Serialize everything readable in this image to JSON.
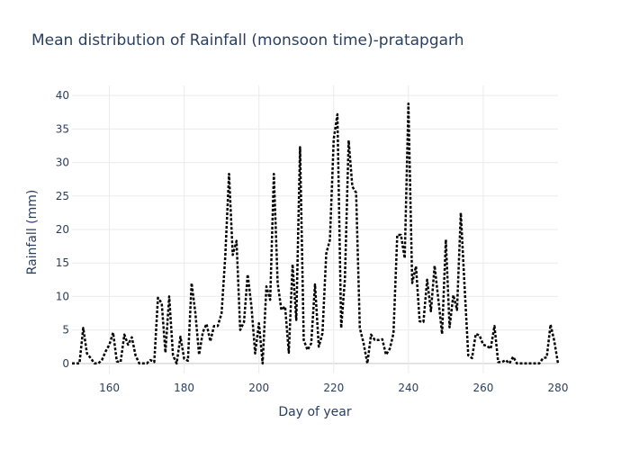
{
  "chart_data": {
    "type": "line",
    "title": "Mean distribution of Rainfall (monsoon time)-pratapgarh",
    "xlabel": "Day of year",
    "ylabel": "Rainfall (mm)",
    "xlim": [
      150,
      280
    ],
    "ylim": [
      -1.5,
      41.5
    ],
    "xticks": [
      160,
      180,
      200,
      220,
      240,
      260,
      280
    ],
    "yticks": [
      0,
      5,
      10,
      15,
      20,
      25,
      30,
      35,
      40
    ],
    "grid": true,
    "legend": "none",
    "line_color": "#000000",
    "line_style": "dotted",
    "series": [
      {
        "x": [
          150,
          151,
          152,
          153,
          154,
          155,
          156,
          157,
          158,
          159,
          160,
          161,
          162,
          163,
          164,
          165,
          166,
          167,
          168,
          169,
          170,
          171,
          172,
          173,
          174,
          175,
          176,
          177,
          178,
          179,
          180,
          181,
          182,
          183,
          184,
          185,
          186,
          187,
          188,
          189,
          190,
          191,
          192,
          193,
          194,
          195,
          196,
          197,
          198,
          199,
          200,
          201,
          202,
          203,
          204,
          205,
          206,
          207,
          208,
          209,
          210,
          211,
          212,
          213,
          214,
          215,
          216,
          217,
          218,
          219,
          220,
          221,
          222,
          223,
          224,
          225,
          226,
          227,
          228,
          229,
          230,
          231,
          232,
          233,
          234,
          235,
          236,
          237,
          238,
          239,
          240,
          241,
          242,
          243,
          244,
          245,
          246,
          247,
          248,
          249,
          250,
          251,
          252,
          253,
          254,
          255,
          256,
          257,
          258,
          259,
          260,
          261,
          262,
          263,
          264,
          265,
          266,
          267,
          268,
          269,
          270,
          271,
          272,
          273,
          274,
          275,
          276,
          277,
          278,
          279,
          280
        ],
        "values": [
          0,
          0,
          0,
          5.3,
          1.5,
          0.8,
          0,
          0,
          0.5,
          1.8,
          2.8,
          4.6,
          0.3,
          0.2,
          4.3,
          2.8,
          3.9,
          1.2,
          0,
          0,
          0,
          0.5,
          0.2,
          9.8,
          9,
          1.6,
          10,
          1.2,
          0,
          4,
          0.7,
          0.4,
          12,
          7.5,
          1.3,
          4.7,
          5.9,
          3.3,
          5.6,
          5.6,
          7.5,
          16,
          28.3,
          16.2,
          18.3,
          5,
          6.2,
          13.3,
          8.5,
          1.5,
          6,
          0,
          11.5,
          9.5,
          28.3,
          12,
          8,
          8.5,
          1.6,
          14.8,
          6.5,
          32.3,
          3.5,
          2,
          3,
          11.8,
          2.5,
          4.5,
          16.4,
          18.5,
          33.5,
          37.2,
          5.3,
          12.5,
          33.3,
          26.4,
          25.5,
          5.3,
          3,
          0,
          4.3,
          3.5,
          3.5,
          3.6,
          1.3,
          2.2,
          4.5,
          19.2,
          19.2,
          15.7,
          38.8,
          12,
          14.5,
          6.3,
          6.2,
          12.5,
          7.8,
          14.6,
          9.5,
          4.4,
          18.5,
          5.4,
          10.2,
          8,
          22.5,
          11.5,
          1.2,
          0.8,
          4.4,
          4.2,
          2.8,
          2.6,
          2.2,
          5.6,
          0.2,
          0.2,
          0.5,
          0,
          1,
          0,
          0,
          0,
          0,
          0,
          0,
          0,
          0.8,
          0.9,
          5.8,
          3.4,
          0
        ]
      }
    ]
  }
}
